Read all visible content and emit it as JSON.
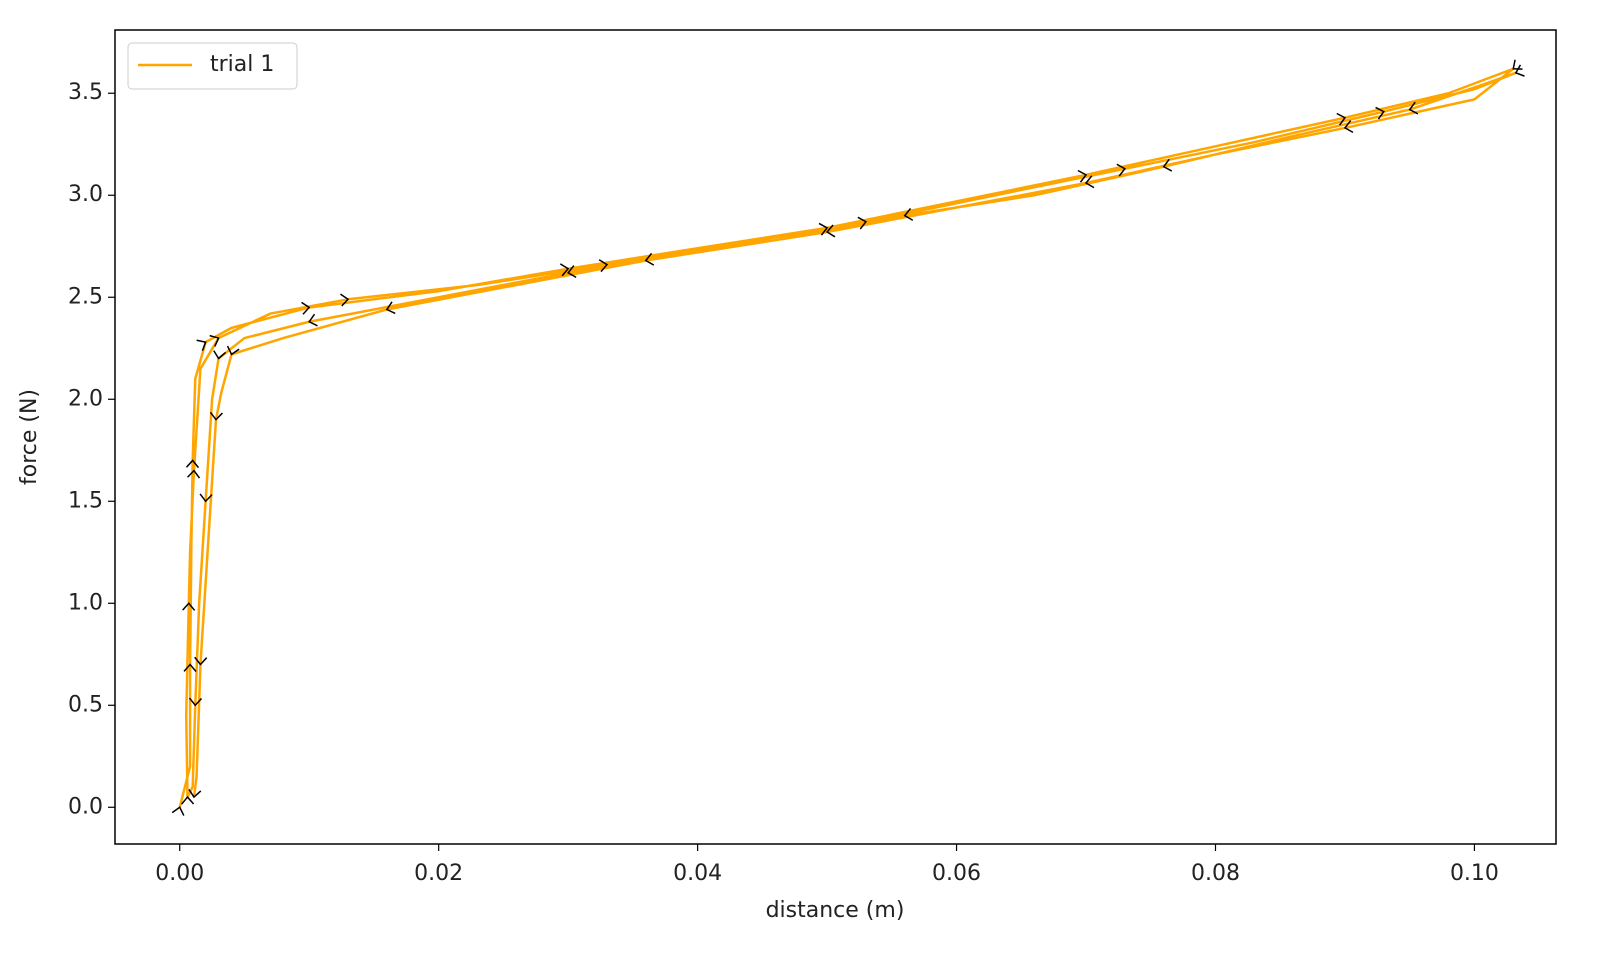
{
  "chart_data": {
    "type": "line",
    "xlabel": "distance (m)",
    "ylabel": "force (N)",
    "xlim": [
      -0.005,
      0.1063
    ],
    "ylim": [
      -0.18,
      3.81
    ],
    "xticks": [
      {
        "value": 0,
        "label": "0.00"
      },
      {
        "value": 0.02,
        "label": "0.02"
      },
      {
        "value": 0.04,
        "label": "0.04"
      },
      {
        "value": 0.06,
        "label": "0.06"
      },
      {
        "value": 0.08,
        "label": "0.08"
      },
      {
        "value": 0.1,
        "label": "0.10"
      }
    ],
    "yticks": [
      {
        "value": 0,
        "label": "0.0"
      },
      0.5,
      {
        "value": 1,
        "label": "1.0"
      },
      1.5,
      {
        "value": 2,
        "label": "2.0"
      },
      2.5,
      {
        "value": 3,
        "label": "3.0"
      },
      3.5
    ],
    "legend": "upper left",
    "grid": false,
    "series": [
      {
        "name": "trial 1",
        "color": "#ffa500",
        "x": [
          0,
          0.0008,
          0.0008,
          0.0009,
          0.001,
          0.0012,
          0.002,
          0.004,
          0.01,
          0.02,
          0.03,
          0.04,
          0.05,
          0.06,
          0.07,
          0.08,
          0.09,
          0.098,
          0.103,
          0.1,
          0.09,
          0.08,
          0.07,
          0.06,
          0.05,
          0.04,
          0.03,
          0.02,
          0.01,
          0.005,
          0.003,
          0.0025,
          0.002,
          0.0015,
          0.0012,
          0.001,
          0.0006,
          0.0005,
          0.0007,
          0.0008,
          0.0011,
          0.0016,
          0.003,
          0.007,
          0.013,
          0.023,
          0.033,
          0.043,
          0.053,
          0.063,
          0.073,
          0.083,
          0.093,
          0.1,
          0.1032,
          0.101,
          0.095,
          0.086,
          0.076,
          0.066,
          0.056,
          0.046,
          0.036,
          0.026,
          0.016,
          0.008,
          0.004,
          0.0032,
          0.0028,
          0.0022,
          0.0016,
          0.0013,
          0.0011
        ],
        "y": [
          0,
          0.2,
          0.7,
          1.3,
          1.7,
          2.1,
          2.28,
          2.35,
          2.45,
          2.53,
          2.64,
          2.74,
          2.84,
          2.97,
          3.1,
          3.24,
          3.38,
          3.5,
          3.62,
          3.47,
          3.33,
          3.2,
          3.06,
          2.94,
          2.82,
          2.72,
          2.62,
          2.5,
          2.38,
          2.3,
          2.2,
          2.0,
          1.5,
          1.0,
          0.5,
          0.1,
          0.05,
          0.45,
          1.0,
          1.25,
          1.65,
          2.15,
          2.3,
          2.42,
          2.49,
          2.56,
          2.66,
          2.76,
          2.87,
          3.0,
          3.13,
          3.26,
          3.41,
          3.52,
          3.6,
          3.55,
          3.42,
          3.29,
          3.14,
          3.0,
          2.9,
          2.78,
          2.68,
          2.56,
          2.44,
          2.3,
          2.22,
          2.03,
          1.9,
          1.3,
          0.7,
          0.15,
          0.05
        ]
      }
    ]
  }
}
